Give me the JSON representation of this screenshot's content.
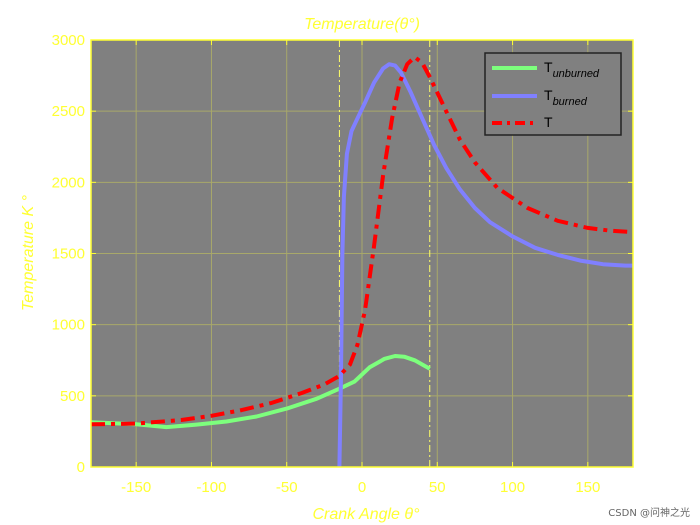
{
  "chart_data": {
    "type": "line",
    "title": "Temperature(θ°)",
    "xlabel": "Crank Angle θ°",
    "ylabel": "Temperature  K °",
    "xlim": [
      -180,
      180
    ],
    "ylim": [
      0,
      3000
    ],
    "xticks": [
      -150,
      -100,
      -50,
      0,
      50,
      100,
      150
    ],
    "yticks": [
      0,
      500,
      1000,
      1500,
      2000,
      2500,
      3000
    ],
    "grid": true,
    "legend_position": "top-right",
    "vertical_lines": [
      -15,
      45
    ],
    "series": [
      {
        "name": "T",
        "name_sub": "unburned",
        "color": "#7dff7d",
        "style": "solid",
        "x": [
          -180,
          -150,
          -130,
          -110,
          -90,
          -70,
          -50,
          -30,
          -15,
          -5,
          5,
          15,
          22,
          28,
          35,
          40,
          45
        ],
        "y": [
          315,
          300,
          280,
          298,
          320,
          355,
          410,
          480,
          550,
          600,
          700,
          760,
          780,
          775,
          750,
          720,
          690
        ]
      },
      {
        "name": "T",
        "name_sub": "burned",
        "color": "#8080ff",
        "style": "solid",
        "x": [
          -15,
          -14,
          -13,
          -12,
          -10,
          -7,
          -3,
          2,
          8,
          14,
          18,
          22,
          26,
          32,
          40,
          48,
          56,
          65,
          75,
          85,
          100,
          115,
          130,
          145,
          160,
          175,
          180
        ],
        "y": [
          0,
          600,
          1500,
          1900,
          2200,
          2360,
          2450,
          2560,
          2700,
          2800,
          2830,
          2820,
          2770,
          2640,
          2450,
          2260,
          2100,
          1950,
          1820,
          1720,
          1620,
          1540,
          1490,
          1450,
          1425,
          1415,
          1415
        ]
      },
      {
        "name": "T",
        "name_sub": "",
        "color": "#ff0000",
        "style": "dashdot",
        "x": [
          -180,
          -150,
          -120,
          -100,
          -80,
          -60,
          -40,
          -25,
          -15,
          -8,
          -3,
          2,
          8,
          14,
          20,
          25,
          30,
          35,
          40,
          45,
          55,
          65,
          75,
          90,
          110,
          130,
          150,
          165,
          180
        ],
        "y": [
          300,
          305,
          330,
          360,
          400,
          450,
          520,
          580,
          640,
          720,
          860,
          1100,
          1550,
          2050,
          2450,
          2700,
          2830,
          2880,
          2840,
          2740,
          2520,
          2300,
          2140,
          1960,
          1820,
          1730,
          1680,
          1660,
          1650
        ]
      }
    ]
  },
  "watermark": "CSDN @问神之光"
}
